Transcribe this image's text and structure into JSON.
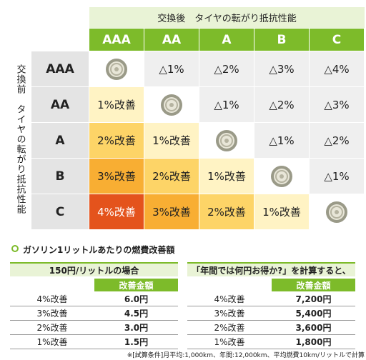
{
  "matrix": {
    "top_header": "交換後　タイヤの転がり抵抗性能",
    "side_header": "交換前　タイヤの転がり抵抗性能",
    "columns": [
      "AAA",
      "AA",
      "A",
      "B",
      "C"
    ],
    "rows": [
      {
        "label": "AAA",
        "cells": [
          null,
          "△1%",
          "△2%",
          "△3%",
          "△4%"
        ]
      },
      {
        "label": "AA",
        "cells": [
          "1%改善",
          null,
          "△1%",
          "△2%",
          "△3%"
        ]
      },
      {
        "label": "A",
        "cells": [
          "2%改善",
          "1%改善",
          null,
          "△1%",
          "△2%"
        ]
      },
      {
        "label": "B",
        "cells": [
          "3%改善",
          "2%改善",
          "1%改善",
          null,
          "△1%"
        ]
      },
      {
        "label": "C",
        "cells": [
          "4%改善",
          "3%改善",
          "2%改善",
          "1%改善",
          null
        ]
      }
    ]
  },
  "section_title": "ガソリン1リットルあたりの燃費改善額",
  "tables": [
    {
      "title": "150円/リットルの場合",
      "column_header": "改善金額",
      "rows": [
        [
          "4%改善",
          "6.0円"
        ],
        [
          "3%改善",
          "4.5円"
        ],
        [
          "2%改善",
          "3.0円"
        ],
        [
          "1%改善",
          "1.5円"
        ]
      ]
    },
    {
      "title": "「年間では何円お得か?」を計算すると、",
      "column_header": "改善金額",
      "rows": [
        [
          "4%改善",
          "7,200円"
        ],
        [
          "3%改善",
          "5,400円"
        ],
        [
          "2%改善",
          "3,600円"
        ],
        [
          "1%改善",
          "1,800円"
        ]
      ]
    }
  ],
  "footnote": "※[試算条件]月平均:1,000km、年間:12,000km、平均燃費10km/リットルで計算"
}
